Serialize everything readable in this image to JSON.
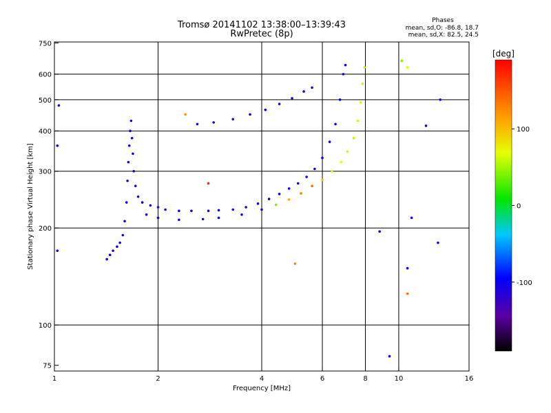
{
  "header": {
    "title": "Tromsø 20141102 13:38:00–13:39:43",
    "subtitle": "RwPretec (8p)"
  },
  "phase_stats": {
    "heading": "Phases",
    "o_line": "mean, sd,O: -86.8, 18.7",
    "x_line": "mean, sd,X: 82.5, 24.5"
  },
  "colorbar": {
    "unit": "[deg]",
    "ticks": [
      {
        "value": 100,
        "label": "100"
      },
      {
        "value": 0,
        "label": "0"
      },
      {
        "value": -100,
        "label": "-100"
      }
    ],
    "range": [
      -190,
      190
    ]
  },
  "chart_data": {
    "type": "scatter",
    "xlabel": "Frequency [MHz]",
    "ylabel": "Stationary phase Virtual Height [km]",
    "x_scale": "log",
    "y_scale": "log",
    "xlim": [
      1,
      16
    ],
    "ylim": [
      72,
      755
    ],
    "x_ticks": [
      {
        "value": 1,
        "label": "1"
      },
      {
        "value": 2,
        "label": "2"
      },
      {
        "value": 4,
        "label": "4"
      },
      {
        "value": 6,
        "label": "6"
      },
      {
        "value": 8,
        "label": "8"
      },
      {
        "value": 10,
        "label": "10"
      },
      {
        "value": 16,
        "label": "16"
      }
    ],
    "y_ticks": [
      {
        "value": 75,
        "label": "75"
      },
      {
        "value": 100,
        "label": "100"
      },
      {
        "value": 200,
        "label": "200"
      },
      {
        "value": 300,
        "label": "300"
      },
      {
        "value": 400,
        "label": "400"
      },
      {
        "value": 500,
        "label": "500"
      },
      {
        "value": 600,
        "label": "600"
      },
      {
        "value": 750,
        "label": "750"
      }
    ],
    "x_grid": [
      2,
      4,
      6,
      8,
      10
    ],
    "y_grid": [
      100,
      200,
      300,
      400,
      500,
      600
    ],
    "grid": true,
    "points": [
      [
        1.42,
        160,
        -110
      ],
      [
        1.45,
        165,
        -105
      ],
      [
        1.48,
        170,
        -108
      ],
      [
        1.52,
        175,
        -112
      ],
      [
        1.55,
        180,
        -100
      ],
      [
        1.58,
        190,
        -105
      ],
      [
        1.6,
        210,
        -110
      ],
      [
        1.62,
        240,
        -108
      ],
      [
        1.63,
        280,
        -112
      ],
      [
        1.64,
        320,
        -115
      ],
      [
        1.65,
        360,
        -110
      ],
      [
        1.66,
        400,
        -108
      ],
      [
        1.67,
        430,
        -105
      ],
      [
        1.68,
        380,
        -112
      ],
      [
        1.69,
        340,
        -110
      ],
      [
        1.7,
        300,
        -108
      ],
      [
        1.72,
        270,
        -112
      ],
      [
        1.75,
        250,
        -110
      ],
      [
        1.8,
        240,
        -105
      ],
      [
        1.9,
        235,
        -108
      ],
      [
        2.0,
        232,
        -110
      ],
      [
        2.1,
        228,
        -112
      ],
      [
        2.3,
        226,
        -108
      ],
      [
        2.5,
        226,
        -110
      ],
      [
        2.8,
        226,
        -105
      ],
      [
        3.0,
        227,
        -108
      ],
      [
        3.3,
        228,
        -110
      ],
      [
        3.6,
        232,
        -108
      ],
      [
        3.9,
        238,
        -105
      ],
      [
        4.2,
        246,
        -100
      ],
      [
        4.5,
        255,
        -95
      ],
      [
        4.8,
        265,
        -100
      ],
      [
        5.1,
        275,
        -105
      ],
      [
        5.4,
        288,
        -100
      ],
      [
        5.7,
        305,
        -98
      ],
      [
        6.0,
        330,
        -100
      ],
      [
        6.3,
        370,
        -102
      ],
      [
        6.55,
        420,
        -100
      ],
      [
        6.75,
        500,
        -98
      ],
      [
        6.9,
        600,
        -100
      ],
      [
        7.0,
        640,
        -102
      ],
      [
        1.85,
        220,
        -110
      ],
      [
        2.0,
        215,
        -108
      ],
      [
        2.3,
        212,
        -112
      ],
      [
        2.7,
        213,
        -110
      ],
      [
        3.0,
        215,
        -108
      ],
      [
        3.5,
        220,
        -105
      ],
      [
        4.0,
        228,
        -100
      ],
      [
        4.4,
        236,
        40
      ],
      [
        4.8,
        245,
        110
      ],
      [
        5.2,
        256,
        130
      ],
      [
        5.6,
        270,
        140
      ],
      [
        6.0,
        282,
        100
      ],
      [
        6.4,
        300,
        60
      ],
      [
        6.8,
        320,
        70
      ],
      [
        7.1,
        345,
        60
      ],
      [
        7.4,
        380,
        55
      ],
      [
        7.6,
        430,
        60
      ],
      [
        7.75,
        490,
        62
      ],
      [
        7.85,
        560,
        58
      ],
      [
        7.95,
        630,
        60
      ],
      [
        2.6,
        420,
        -100
      ],
      [
        2.9,
        425,
        -105
      ],
      [
        3.3,
        435,
        -108
      ],
      [
        3.7,
        450,
        -100
      ],
      [
        4.1,
        465,
        -105
      ],
      [
        4.5,
        485,
        -102
      ],
      [
        4.9,
        505,
        -100
      ],
      [
        5.3,
        530,
        -105
      ],
      [
        5.6,
        545,
        -110
      ],
      [
        1.02,
        170,
        -105
      ],
      [
        1.02,
        360,
        -100
      ],
      [
        1.03,
        480,
        -110
      ],
      [
        2.4,
        450,
        120
      ],
      [
        2.8,
        275,
        170
      ],
      [
        5.0,
        155,
        130
      ],
      [
        8.8,
        195,
        -110
      ],
      [
        9.4,
        80,
        -110
      ],
      [
        10.6,
        150,
        -100
      ],
      [
        10.6,
        125,
        140
      ],
      [
        10.9,
        215,
        -100
      ],
      [
        12.0,
        415,
        -100
      ],
      [
        13.0,
        180,
        -100
      ],
      [
        13.2,
        500,
        -110
      ],
      [
        10.2,
        660,
        40
      ],
      [
        10.6,
        630,
        70
      ]
    ]
  }
}
